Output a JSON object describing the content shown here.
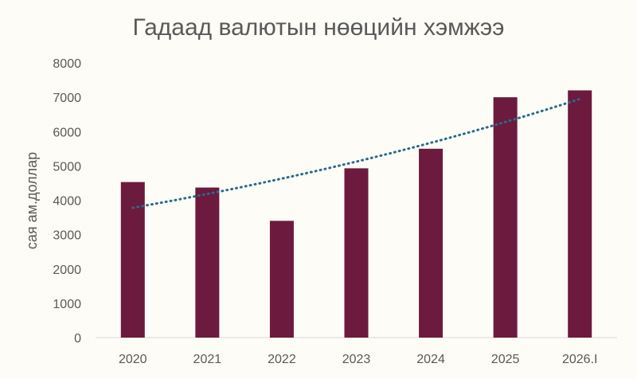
{
  "chart_data": {
    "type": "bar",
    "title": "Гадаад валютын нөөцийн хэмжээ",
    "xlabel": "",
    "ylabel": "сая ам.доллар",
    "categories": [
      "2020",
      "2021",
      "2022",
      "2023",
      "2024",
      "2025",
      "2026.I"
    ],
    "values": [
      4530,
      4370,
      3400,
      4930,
      5500,
      7000,
      7200
    ],
    "ylim": [
      0,
      8000
    ],
    "yticks": [
      0,
      1000,
      2000,
      3000,
      4000,
      5000,
      6000,
      7000,
      8000
    ],
    "trendline": {
      "type": "exponential",
      "start": 3780,
      "end": 6950,
      "style": "dotted"
    },
    "grid": false,
    "legend": "none",
    "colors": {
      "bar": "#6c1a3e",
      "trend": "#2b6a8a",
      "background": "#fdfcf6",
      "text": "#595959"
    }
  }
}
